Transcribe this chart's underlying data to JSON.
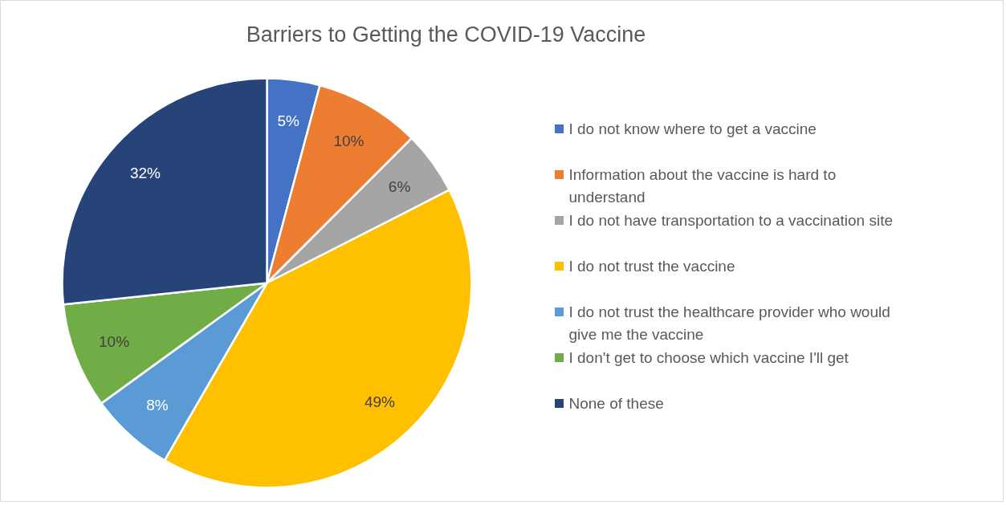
{
  "chart_data": {
    "type": "pie",
    "title": "Barriers to Getting the COVID-19 Vaccine",
    "categories": [
      "I do not know where to get a vaccine",
      "Information about the vaccine is hard to understand",
      "I do not have transportation to a vaccination site",
      "I do not trust the vaccine",
      "I do not trust the healthcare provider who would give me the vaccine",
      "I don't get to choose which vaccine I'll get",
      "None of these"
    ],
    "values": [
      5,
      10,
      6,
      49,
      8,
      10,
      32
    ],
    "value_labels": [
      "5%",
      "10%",
      "6%",
      "49%",
      "8%",
      "10%",
      "32%"
    ],
    "colors": [
      "#4472c4",
      "#ed7d31",
      "#a5a5a5",
      "#ffc000",
      "#5b9bd5",
      "#70ad47",
      "#264478"
    ],
    "legend": "right"
  }
}
